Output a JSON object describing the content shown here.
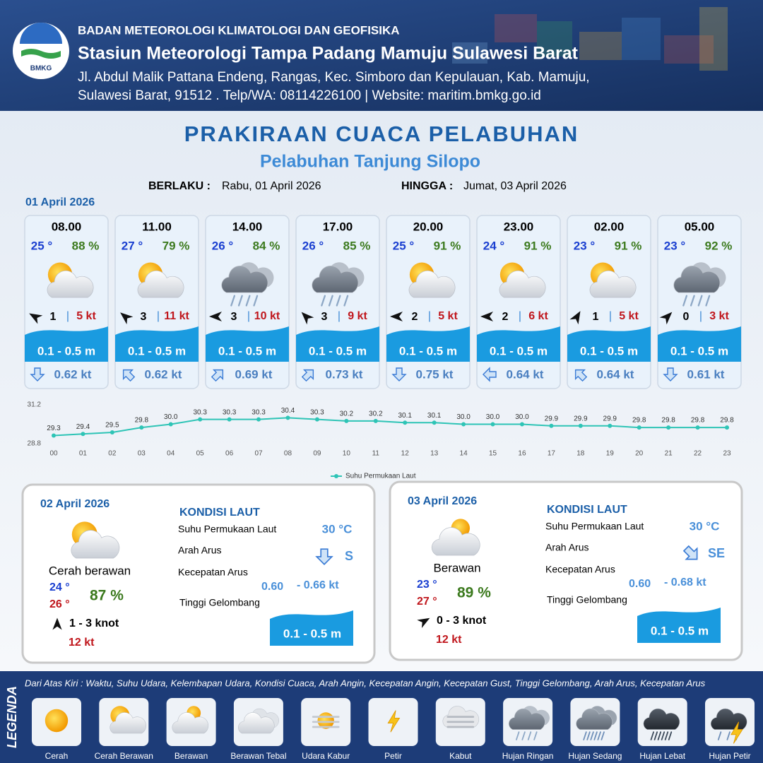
{
  "header": {
    "logo_text": "BMKG",
    "agency": "BADAN METEOROLOGI KLIMATOLOGI DAN GEOFISIKA",
    "station": "Stasiun Meteorologi Tampa Padang Mamuju Sulawesi Barat",
    "address_lines": [
      "Jl. Abdul Malik Pattana Endeng, Rangas, Kec. Simboro dan Kepulauan, Kab. Mamuju,",
      "Sulawesi Barat, 91512 . Telp/WA: 08114226100 | Website: maritim.bmkg.go.id"
    ]
  },
  "title": "PRAKIRAAN CUACA PELABUHAN",
  "subtitle": "Pelabuhan Tanjung Silopo",
  "validity": {
    "from_label": "BERLAKU :",
    "from": "Rabu, 01 April 2026",
    "to_label": "HINGGA :",
    "to": "Jumat, 03 April 2026"
  },
  "day1": {
    "date": "01 April 2026",
    "separator": "|",
    "forecasts": [
      {
        "time": "08.00",
        "temperature": "25 °",
        "humidity": "88 %",
        "wind_force": "1",
        "wind_speed": "5 kt",
        "wave_height": "0.1 - 0.5 m",
        "current_speed": "0.62 kt"
      },
      {
        "time": "11.00",
        "temperature": "27 °",
        "humidity": "79 %",
        "wind_force": "3",
        "wind_speed": "11 kt",
        "wave_height": "0.1 - 0.5 m",
        "current_speed": "0.62 kt"
      },
      {
        "time": "14.00",
        "temperature": "26 °",
        "humidity": "84 %",
        "wind_force": "3",
        "wind_speed": "10 kt",
        "wave_height": "0.1 - 0.5 m",
        "current_speed": "0.69 kt"
      },
      {
        "time": "17.00",
        "temperature": "26 °",
        "humidity": "85 %",
        "wind_force": "3",
        "wind_speed": "9 kt",
        "wave_height": "0.1 - 0.5 m",
        "current_speed": "0.73 kt"
      },
      {
        "time": "20.00",
        "temperature": "25 °",
        "humidity": "91 %",
        "wind_force": "2",
        "wind_speed": "5 kt",
        "wave_height": "0.1 - 0.5 m",
        "current_speed": "0.75 kt"
      },
      {
        "time": "23.00",
        "temperature": "24 °",
        "humidity": "91 %",
        "wind_force": "2",
        "wind_speed": "6 kt",
        "wave_height": "0.1 - 0.5 m",
        "current_speed": "0.64 kt"
      },
      {
        "time": "02.00",
        "temperature": "23 °",
        "humidity": "91 %",
        "wind_force": "1",
        "wind_speed": "5 kt",
        "wave_height": "0.1 - 0.5 m",
        "current_speed": "0.64 kt"
      },
      {
        "time": "05.00",
        "temperature": "23 °",
        "humidity": "92 %",
        "wind_force": "0",
        "wind_speed": "3 kt",
        "wave_height": "0.1 - 0.5 m",
        "current_speed": "0.61 kt"
      }
    ]
  },
  "chart_data": {
    "type": "line",
    "categories": [
      "00",
      "01",
      "02",
      "03",
      "04",
      "05",
      "06",
      "07",
      "08",
      "09",
      "10",
      "11",
      "12",
      "13",
      "14",
      "15",
      "16",
      "17",
      "18",
      "19",
      "20",
      "21",
      "22",
      "23"
    ],
    "series": [
      {
        "name": "Suhu Permukaan Laut",
        "color": "#2ec4b6",
        "values": [
          29.3,
          29.4,
          29.5,
          29.8,
          30.0,
          30.3,
          30.3,
          30.3,
          30.4,
          30.3,
          30.2,
          30.2,
          30.1,
          30.1,
          30.0,
          30.0,
          30.0,
          29.9,
          29.9,
          29.9,
          29.8,
          29.8,
          29.8,
          29.8
        ],
        "value_labels": [
          "29.3",
          "29.4",
          "29.5",
          "29.8",
          "30.0",
          "30.3",
          "30.3",
          "30.3",
          "30.4",
          "30.3",
          "30.2",
          "30.2",
          "30.1",
          "30.1",
          "30.0",
          "30.0",
          "30.0",
          "29.9",
          "29.9",
          "29.9",
          "29.8",
          "29.8",
          "29.8",
          "29.8"
        ]
      }
    ],
    "ylim": [
      28.8,
      31.2
    ],
    "yticks": [
      28.8,
      31.2
    ],
    "grid": false,
    "legend": "bottom"
  },
  "days": [
    {
      "date": "02 April 2026",
      "condition": "Cerah berawan",
      "temp_min": "24 °",
      "temp_max": "26 °",
      "humidity": "87 %",
      "wind": "1 - 3 knot",
      "gust": "12 kt",
      "sea": {
        "title": "KONDISI LAUT",
        "sst_label": "Suhu Permukaan Laut",
        "sst": "30 °C",
        "current_dir_label": "Arah Arus",
        "current_dir": "S",
        "current_speed_label": "Kecepatan Arus",
        "current_speed_min": "0.60",
        "current_speed_max": "- 0.66 kt",
        "wave_label": "Tinggi Gelombang",
        "wave": "0.1 - 0.5 m"
      }
    },
    {
      "date": "03 April 2026",
      "condition": "Berawan",
      "temp_min": "23 °",
      "temp_max": "27 °",
      "humidity": "89 %",
      "wind": "0 - 3 knot",
      "gust": "12 kt",
      "sea": {
        "title": "KONDISI LAUT",
        "sst_label": "Suhu Permukaan Laut",
        "sst": "30 °C",
        "current_dir_label": "Arah Arus",
        "current_dir": "SE",
        "current_speed_label": "Kecepatan Arus",
        "current_speed_min": "0.60",
        "current_speed_max": "- 0.68 kt",
        "wave_label": "Tinggi Gelombang",
        "wave": "0.1 - 0.5 m"
      }
    }
  ],
  "legend": {
    "title": "LEGENDA",
    "description": "Dari Atas Kiri : Waktu, Suhu Udara, Kelembapan Udara, Kondisi Cuaca, Arah Angin, Kecepatan Angin, Kecepatan Gust, Tinggi Gelombang, Arah Arus, Kecepatan Arus",
    "items": [
      "Cerah",
      "Cerah Berawan",
      "Berawan",
      "Berawan Tebal",
      "Udara Kabur",
      "Petir",
      "Kabut",
      "Hujan Ringan",
      "Hujan Sedang",
      "Hujan Lebat",
      "Hujan Petir"
    ]
  }
}
